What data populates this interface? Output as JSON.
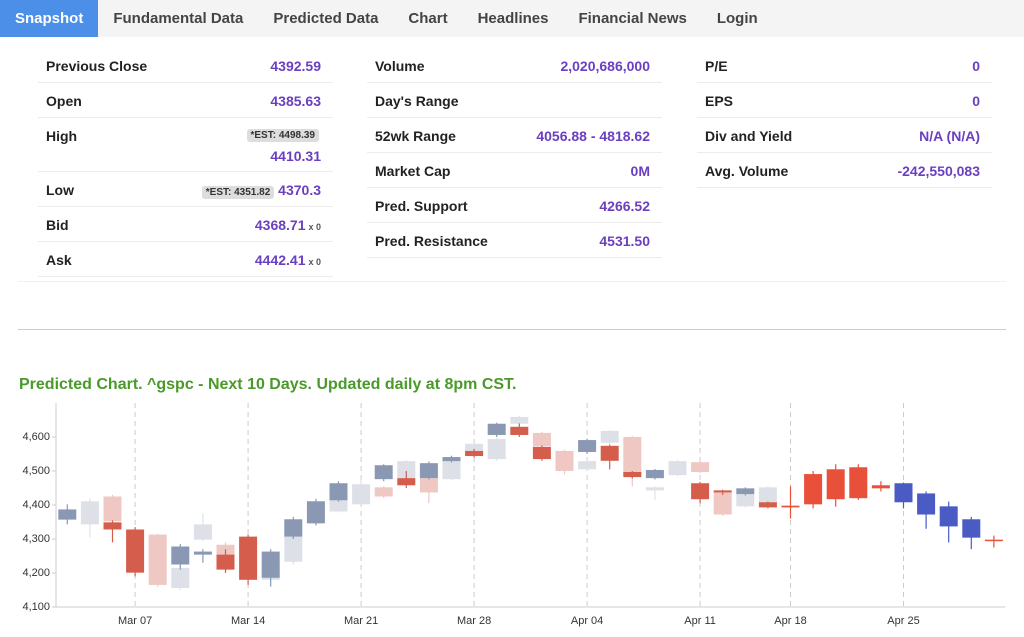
{
  "nav": {
    "tabs": [
      "Snapshot",
      "Fundamental Data",
      "Predicted Data",
      "Chart",
      "Headlines",
      "Financial News",
      "Login"
    ],
    "active": 0
  },
  "snapshot": {
    "columns": [
      [
        {
          "label": "Previous Close",
          "value": "4392.59"
        },
        {
          "label": "Open",
          "value": "4385.63"
        },
        {
          "label": "High",
          "est": "*EST: 4498.39",
          "value": "4410.31"
        },
        {
          "label": "Low",
          "est": "*EST: 4351.82",
          "value": "4370.3"
        },
        {
          "label": "Bid",
          "value": "4368.71",
          "suffix": "x 0"
        },
        {
          "label": "Ask",
          "value": "4442.41",
          "suffix": "x 0"
        }
      ],
      [
        {
          "label": "Volume",
          "value": "2,020,686,000"
        },
        {
          "label": "Day's Range"
        },
        {
          "label": "52wk Range",
          "value": "4056.88 - 4818.62"
        },
        {
          "label": "Market Cap",
          "value": "0M"
        },
        {
          "label": "Pred. Support",
          "value": "4266.52"
        },
        {
          "label": "Pred. Resistance",
          "value": "4531.50"
        }
      ],
      [
        {
          "label": "P/E",
          "value": "0"
        },
        {
          "label": "EPS",
          "value": "0"
        },
        {
          "label": "Div and Yield",
          "value": "N/A (N/A)"
        },
        {
          "label": "Avg. Volume",
          "value": "-242,550,083"
        }
      ]
    ]
  },
  "chart_data": {
    "type": "candlestick",
    "title": "Predicted Chart. ^gspc - Next 10 Days. Updated daily at 8pm CST.",
    "categories": [
      null,
      null,
      null,
      "Mar 07",
      null,
      null,
      null,
      null,
      "Mar 14",
      null,
      null,
      null,
      null,
      "Mar 21",
      null,
      null,
      null,
      null,
      "Mar 28",
      null,
      null,
      null,
      null,
      "Apr 04",
      null,
      null,
      null,
      null,
      "Apr 11",
      null,
      null,
      null,
      "Apr 18",
      null,
      null,
      null,
      null,
      "Apr 25",
      null,
      null,
      null,
      null
    ],
    "ylim": [
      4100,
      4700
    ],
    "yticks": [
      {
        "value": 4100,
        "label": "4,100"
      },
      {
        "value": 4200,
        "label": "4,200"
      },
      {
        "value": 4300,
        "label": "4,300"
      },
      {
        "value": 4400,
        "label": "4,400"
      },
      {
        "value": 4500,
        "label": "4,500"
      },
      {
        "value": 4600,
        "label": "4,600"
      }
    ],
    "series": [
      {
        "up_color": "#dde0e7",
        "down_color": "#efc7c3",
        "open": [
          null,
          4343,
          4425,
          null,
          4313,
          4156,
          4298,
          4283,
          null,
          4180,
          4233,
          null,
          4381,
          4402,
          4452,
          4479,
          4479,
          4476,
          4550,
          4535,
          4639,
          4612,
          4559,
          4505,
          4583,
          4600,
          4443,
          4488,
          4526,
          4437,
          4396,
          4405,
          null,
          null,
          null,
          null,
          null,
          null,
          null,
          null,
          null,
          null
        ],
        "high": [
          null,
          4420,
          4430,
          null,
          4315,
          4220,
          4375,
          4290,
          null,
          4230,
          4310,
          null,
          4420,
          4475,
          4455,
          4532,
          4482,
          4532,
          4583,
          4597,
          4662,
          4615,
          4562,
          4532,
          4621,
          4603,
          4455,
          4532,
          4529,
          4440,
          4435,
          4455,
          null,
          null,
          null,
          null,
          null,
          null,
          null,
          null,
          null,
          null
        ],
        "low": [
          null,
          4305,
          4348,
          null,
          4160,
          4150,
          4295,
          4205,
          null,
          4175,
          4225,
          null,
          4378,
          4400,
          4420,
          4475,
          4405,
          4473,
          4547,
          4530,
          4636,
          4570,
          4490,
          4502,
          4580,
          4455,
          4415,
          4485,
          4494,
          4368,
          4393,
          4400,
          null,
          null,
          null,
          null,
          null,
          null,
          null,
          null,
          null,
          null
        ],
        "close": [
          null,
          4411,
          4352,
          null,
          4165,
          4215,
          4343,
          4210,
          null,
          4225,
          4307,
          null,
          4417,
          4461,
          4425,
          4529,
          4437,
          4529,
          4580,
          4594,
          4659,
          4573,
          4500,
          4529,
          4618,
          4488,
          4452,
          4529,
          4497,
          4372,
          4432,
          4452,
          null,
          null,
          null,
          null,
          null,
          null,
          null,
          null,
          null,
          null
        ]
      },
      {
        "up_color": "#8a98b3",
        "down_color": "#d45d4c",
        "open": [
          4357,
          null,
          4349,
          4328,
          null,
          4225,
          4254,
          4254,
          4307,
          4186,
          4307,
          4346,
          4414,
          null,
          4476,
          4479,
          4479,
          4529,
          4559,
          4606,
          4630,
          4571,
          null,
          4556,
          4574,
          4497,
          4479,
          null,
          4464,
          4443,
          4432,
          4408,
          null,
          null,
          null,
          null,
          null,
          null,
          null,
          null,
          null,
          null
        ],
        "high": [
          4402,
          null,
          4355,
          4335,
          null,
          4285,
          4270,
          4270,
          4313,
          4270,
          4365,
          4418,
          4470,
          null,
          4520,
          4500,
          4528,
          4545,
          4565,
          4642,
          4640,
          4575,
          null,
          4595,
          4578,
          4500,
          4506,
          null,
          4468,
          4445,
          4452,
          4410,
          null,
          null,
          null,
          null,
          null,
          null,
          null,
          null,
          null,
          null
        ],
        "low": [
          4343,
          null,
          4290,
          4190,
          null,
          4210,
          4230,
          4200,
          4165,
          4160,
          4300,
          4340,
          4410,
          null,
          4470,
          4450,
          4475,
          4525,
          4540,
          4600,
          4600,
          4530,
          null,
          4550,
          4505,
          4478,
          4475,
          null,
          4405,
          4430,
          4428,
          4390,
          null,
          null,
          null,
          null,
          null,
          null,
          null,
          null,
          null,
          null
        ],
        "close": [
          4387,
          null,
          4328,
          4201,
          null,
          4278,
          4263,
          4210,
          4180,
          4263,
          4358,
          4411,
          4464,
          null,
          4517,
          4458,
          4523,
          4541,
          4544,
          4639,
          4606,
          4535,
          null,
          4591,
          4530,
          4482,
          4503,
          null,
          4417,
          4437,
          4449,
          4393,
          null,
          null,
          null,
          null,
          null,
          null,
          null,
          null,
          null,
          null
        ]
      },
      {
        "up_color": "#e8503a",
        "down_color": "#4a5bc4",
        "open": [
          null,
          null,
          null,
          null,
          null,
          null,
          null,
          null,
          null,
          null,
          null,
          null,
          null,
          null,
          null,
          null,
          null,
          null,
          null,
          null,
          null,
          null,
          null,
          null,
          null,
          null,
          null,
          null,
          null,
          null,
          null,
          null,
          4393,
          4402,
          4417,
          4420,
          4449,
          4464,
          4434,
          4396,
          4358,
          4295
        ],
        "high": [
          null,
          null,
          null,
          null,
          null,
          null,
          null,
          null,
          null,
          null,
          null,
          null,
          null,
          null,
          null,
          null,
          null,
          null,
          null,
          null,
          null,
          null,
          null,
          null,
          null,
          null,
          null,
          null,
          null,
          null,
          null,
          null,
          4455,
          4500,
          4520,
          4520,
          4470,
          4466,
          4440,
          4410,
          4365,
          4310
        ],
        "low": [
          null,
          null,
          null,
          null,
          null,
          null,
          null,
          null,
          null,
          null,
          null,
          null,
          null,
          null,
          null,
          null,
          null,
          null,
          null,
          null,
          null,
          null,
          null,
          null,
          null,
          null,
          null,
          null,
          null,
          null,
          null,
          null,
          4360,
          4390,
          4395,
          4415,
          4440,
          4390,
          4330,
          4290,
          4270,
          4275
        ],
        "close": [
          null,
          null,
          null,
          null,
          null,
          null,
          null,
          null,
          null,
          null,
          null,
          null,
          null,
          null,
          null,
          null,
          null,
          null,
          null,
          null,
          null,
          null,
          null,
          null,
          null,
          null,
          null,
          null,
          null,
          null,
          null,
          null,
          4398,
          4491,
          4505,
          4511,
          4458,
          4408,
          4372,
          4337,
          4304,
          4298
        ]
      }
    ]
  }
}
